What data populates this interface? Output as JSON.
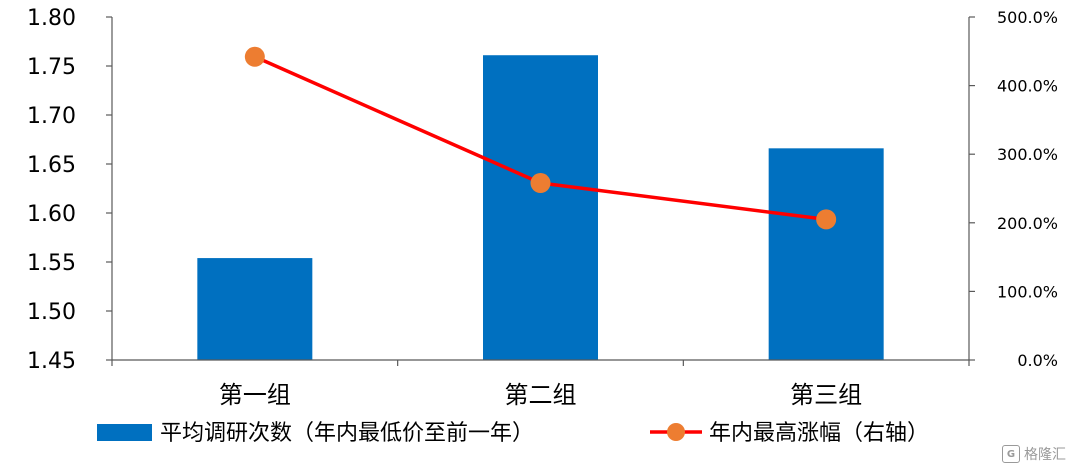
{
  "chart_data": {
    "type": "bar",
    "categories": [
      "第一组",
      "第二组",
      "第三组"
    ],
    "left_axis": {
      "ylim": [
        1.45,
        1.8
      ],
      "ticks": [
        "1.45",
        "1.50",
        "1.55",
        "1.60",
        "1.65",
        "1.70",
        "1.75",
        "1.80"
      ]
    },
    "right_axis": {
      "ylim": [
        0,
        500
      ],
      "ticks": [
        "0.0%",
        "100.0%",
        "200.0%",
        "300.0%",
        "400.0%",
        "500.0%"
      ]
    },
    "series": [
      {
        "name": "平均调研次数（年内最低价至前一年）",
        "type": "bar",
        "axis": "left",
        "color": "#0070C0",
        "values": [
          1.554,
          1.761,
          1.666
        ]
      },
      {
        "name": "年内最高涨幅（右轴）",
        "type": "line",
        "axis": "right",
        "color": "#FF0000",
        "marker_color": "#ED7D31",
        "values": [
          442,
          258,
          205
        ]
      }
    ],
    "legend_position": "bottom",
    "grid": false
  },
  "watermark": {
    "logo": "G",
    "text": "格隆汇"
  }
}
